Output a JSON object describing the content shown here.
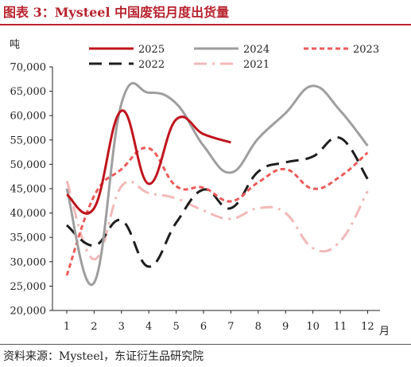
{
  "title": "图表 3：Mysteel 中国废铝月度出货量",
  "source": "资料来源：Mysteel，东证衍生品研究院",
  "chart_data": {
    "type": "line",
    "ylabel": "吨",
    "xlabel": "月",
    "ylim": [
      20000,
      70000
    ],
    "yticks": [
      "20,000",
      "25,000",
      "30,000",
      "35,000",
      "40,000",
      "45,000",
      "50,000",
      "55,000",
      "60,000",
      "65,000",
      "70,000"
    ],
    "categories": [
      "1",
      "2",
      "3",
      "4",
      "5",
      "6",
      "7",
      "8",
      "9",
      "10",
      "11",
      "12"
    ],
    "legend_position": "top",
    "grid": false,
    "series": [
      {
        "name": "2025",
        "color": "#c0141d",
        "dash": "solid",
        "values": [
          43800,
          41000,
          61000,
          46000,
          59200,
          56200,
          54500,
          null,
          null,
          null,
          null,
          null
        ]
      },
      {
        "name": "2024",
        "color": "#9e9e9e",
        "dash": "solid",
        "values": [
          45000,
          25700,
          62500,
          64700,
          62500,
          53800,
          48300,
          55300,
          60500,
          66100,
          61000,
          53800
        ]
      },
      {
        "name": "2023",
        "color": "#ee5a5a",
        "dash": "short-dash",
        "values": [
          27200,
          43500,
          49000,
          53300,
          45500,
          45200,
          42400,
          46300,
          49000,
          45000,
          47500,
          52400
        ]
      },
      {
        "name": "2022",
        "color": "#1e1e1e",
        "dash": "long-dash",
        "values": [
          37500,
          33300,
          38500,
          29000,
          38000,
          44800,
          41000,
          48500,
          50400,
          51600,
          55400,
          47000
        ]
      },
      {
        "name": "2021",
        "color": "#f3b8b8",
        "dash": "dash-dot",
        "values": [
          46600,
          30500,
          45500,
          44100,
          43000,
          40500,
          38800,
          41000,
          40000,
          32800,
          34200,
          44500
        ]
      }
    ]
  }
}
